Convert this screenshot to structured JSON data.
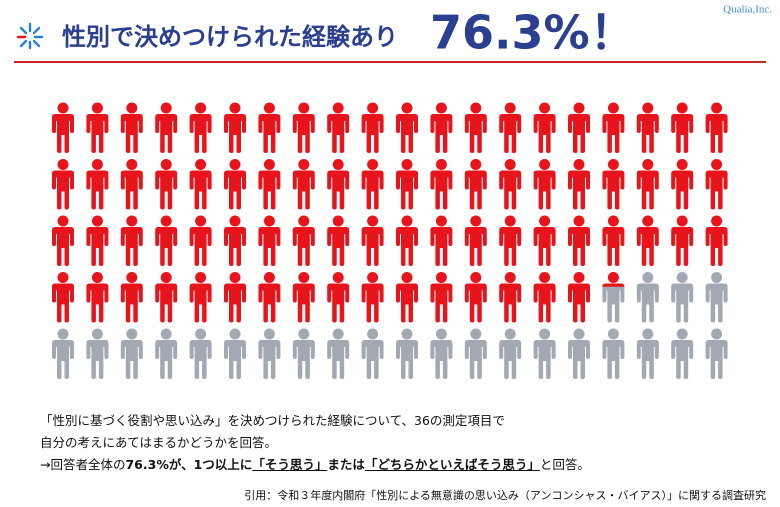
{
  "brand": "Qualia,Inc.",
  "chart_data": {
    "type": "pictogram",
    "title": "性別で決めつけられた経験あり",
    "value": 76.3,
    "value_label": "76.3%！",
    "color": "#e8141c",
    "rest_color": "#a3a9b3"
  },
  "description": {
    "line1": "「性別に基づく役割や思い込み」を決めつけられた経験について、36の測定項目で",
    "line2": "自分の考えにあてはまるかどうかを回答。",
    "line3": [
      "→回答者全体の",
      "76.3%が、1つ以上に",
      "「そう思う」",
      "または",
      "「どちらかといえばそう思う」",
      "と回答。"
    ]
  },
  "citation": "引用：令和３年度内閣府「性別による無意識の思い込み（アンコンシャス・バイアス）」に関する調査研究"
}
